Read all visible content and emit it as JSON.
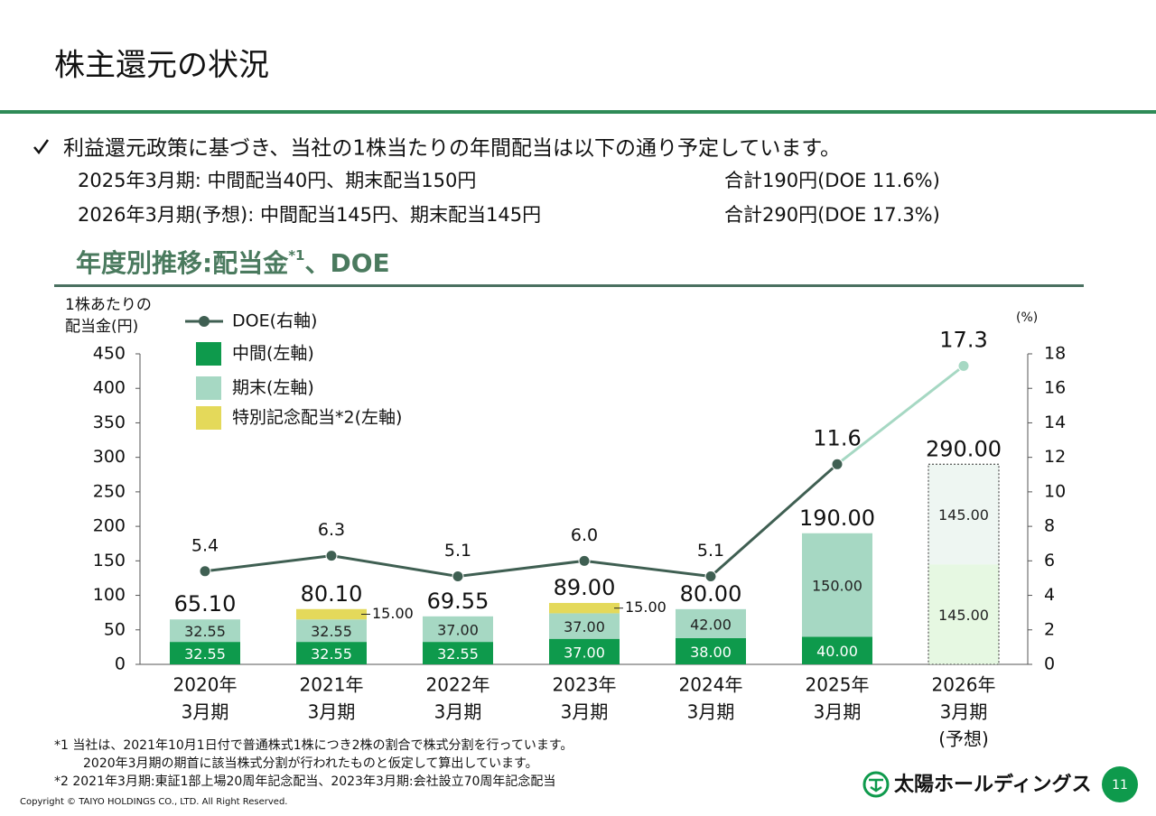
{
  "title": "株主還元の状況",
  "intro": {
    "text": "利益還元政策に基づき、当社の1株当たりの年間配当は以下の通り予定しています。",
    "rows": [
      [
        "2025年3月期: 中間配当40円、期末配当150円",
        "合計190円(DOE 11.6%)"
      ],
      [
        "2026年3月期(予想): 中間配当145円、期末配当145円",
        "合計290円(DOE 17.3%)"
      ]
    ]
  },
  "section_title": [
    "年度別推移:配当金",
    "*1",
    "、DOE"
  ],
  "chart_data": {
    "type": "stacked_bar_line",
    "y_label": [
      "1株あたりの",
      "配当金(円)"
    ],
    "y2_label": "(%)",
    "categories": [
      [
        "2020年",
        "3月期"
      ],
      [
        "2021年",
        "3月期"
      ],
      [
        "2022年",
        "3月期"
      ],
      [
        "2023年",
        "3月期"
      ],
      [
        "2024年",
        "3月期"
      ],
      [
        "2025年",
        "3月期"
      ],
      [
        "2026年",
        "3月期",
        "(予想)"
      ]
    ],
    "forecast_start": 6,
    "ylim": [
      0,
      450
    ],
    "yticks": [
      0,
      50,
      100,
      150,
      200,
      250,
      300,
      350,
      400,
      450
    ],
    "y2lim": [
      0,
      18
    ],
    "y2ticks": [
      0,
      2,
      4,
      6,
      8,
      10,
      12,
      14,
      16,
      18
    ],
    "series": [
      {
        "name": "中間(左軸)",
        "color": "#0e9a4c",
        "forecast_color": "#e6f8e2",
        "label_color": "#ffffff",
        "values": [
          32.55,
          32.55,
          32.55,
          37,
          38,
          40,
          145
        ],
        "value_labels": [
          "32.55",
          "32.55",
          "32.55",
          "37.00",
          "38.00",
          "40.00",
          "145.00"
        ]
      },
      {
        "name": "期末(左軸)",
        "color": "#a6d8c3",
        "forecast_color": "#eef6f2",
        "label_color": "#222222",
        "values": [
          32.55,
          32.55,
          37,
          37,
          42,
          150,
          145
        ],
        "value_labels": [
          "32.55",
          "32.55",
          "37.00",
          "37.00",
          "42.00",
          "150.00",
          "145.00"
        ]
      },
      {
        "name": "特別記念配当*2(左軸)",
        "color": "#e4d95a",
        "forecast_color": "#f6f0b8",
        "label_color": "#222222",
        "values": [
          null,
          15,
          null,
          15,
          null,
          null,
          null
        ],
        "value_labels": [
          null,
          "15.00",
          null,
          "15.00",
          null,
          null,
          null
        ]
      },
      {
        "name": "DOE(右軸)",
        "type": "line",
        "axis": "y2",
        "color": "#3f5f52",
        "forecast_color": "#a6d8c3",
        "values": [
          5.4,
          6.3,
          5.1,
          6.0,
          5.1,
          11.6,
          17.3
        ],
        "value_labels": [
          "5.4",
          "6.3",
          "5.1",
          "6.0",
          "5.1",
          "11.6",
          "17.3"
        ]
      }
    ],
    "totals": {
      "values": [
        65.1,
        80.1,
        69.55,
        89.0,
        80.0,
        190.0,
        290.0
      ],
      "value_labels": [
        "65.10",
        "80.10",
        "69.55",
        "89.00",
        "80.00",
        "190.00",
        "290.00"
      ]
    }
  },
  "footnotes": [
    "*1  当社は、2021年10月1日付で普通株式1株につき2株の割合で株式分割を行っています。",
    "2020年3月期の期首に該当株式分割が行われたものと仮定して算出しています。",
    "*2  2021年3月期:東証1部上場20周年記念配当、2023年3月期:会社設立70周年記念配当"
  ],
  "copyright": "Copyright © TAIYO HOLDINGS CO., LTD.  All Right Reserved.",
  "logo": "太陽ホールディングス",
  "page_number": "11"
}
